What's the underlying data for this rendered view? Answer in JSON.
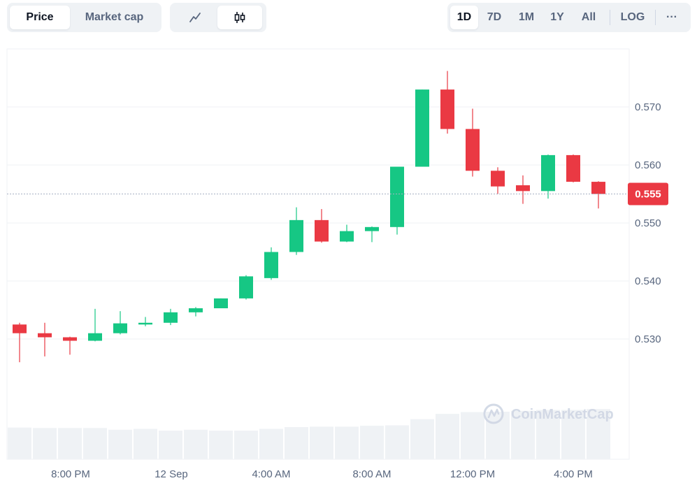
{
  "toolbar": {
    "metric_tabs": [
      {
        "label": "Price",
        "active": true
      },
      {
        "label": "Market cap",
        "active": false
      }
    ],
    "chart_types": [
      {
        "icon": "line-chart-icon",
        "active": false
      },
      {
        "icon": "candlestick-icon",
        "active": true
      }
    ],
    "ranges": [
      {
        "label": "1D",
        "active": true
      },
      {
        "label": "7D",
        "active": false
      },
      {
        "label": "1M",
        "active": false
      },
      {
        "label": "1Y",
        "active": false
      },
      {
        "label": "All",
        "active": false
      }
    ],
    "log_label": "LOG",
    "more_label": "···"
  },
  "watermark": "CoinMarketCap",
  "colors": {
    "up": "#16c784",
    "down": "#ea3943",
    "grid": "#eff2f5",
    "axis_text": "#58667e",
    "volume": "#eff2f5",
    "current_price_badge": "#ea3943"
  },
  "chart_data": {
    "type": "candlestick",
    "x_tick_labels": [
      "8:00 PM",
      "12 Sep",
      "4:00 AM",
      "8:00 AM",
      "12:00 PM",
      "4:00 PM"
    ],
    "y_ticks": [
      0.53,
      0.54,
      0.55,
      0.56,
      0.57
    ],
    "y_tick_labels": [
      "0.530",
      "0.540",
      "0.550",
      "0.560",
      "0.570"
    ],
    "ylim": [
      0.5225,
      0.5785
    ],
    "current_price": 0.555,
    "current_price_label": "0.555",
    "grid": true,
    "candles": [
      {
        "open": 0.5325,
        "close": 0.531,
        "high": 0.5328,
        "low": 0.526
      },
      {
        "open": 0.531,
        "close": 0.5303,
        "high": 0.5328,
        "low": 0.527
      },
      {
        "open": 0.5303,
        "close": 0.5297,
        "high": 0.5304,
        "low": 0.5273
      },
      {
        "open": 0.5297,
        "close": 0.531,
        "high": 0.5352,
        "low": 0.5296
      },
      {
        "open": 0.531,
        "close": 0.5327,
        "high": 0.5348,
        "low": 0.5308
      },
      {
        "open": 0.5325,
        "close": 0.5328,
        "high": 0.5338,
        "low": 0.5322
      },
      {
        "open": 0.5328,
        "close": 0.5346,
        "high": 0.5352,
        "low": 0.5324
      },
      {
        "open": 0.5346,
        "close": 0.5353,
        "high": 0.5355,
        "low": 0.5339
      },
      {
        "open": 0.5353,
        "close": 0.537,
        "high": 0.537,
        "low": 0.5353
      },
      {
        "open": 0.537,
        "close": 0.5408,
        "high": 0.541,
        "low": 0.5368
      },
      {
        "open": 0.5405,
        "close": 0.545,
        "high": 0.5458,
        "low": 0.5402
      },
      {
        "open": 0.545,
        "close": 0.5505,
        "high": 0.5527,
        "low": 0.5445
      },
      {
        "open": 0.5505,
        "close": 0.5468,
        "high": 0.5524,
        "low": 0.5466
      },
      {
        "open": 0.5468,
        "close": 0.5486,
        "high": 0.5497,
        "low": 0.5467
      },
      {
        "open": 0.5486,
        "close": 0.5493,
        "high": 0.5494,
        "low": 0.5467
      },
      {
        "open": 0.5493,
        "close": 0.5597,
        "high": 0.5597,
        "low": 0.548
      },
      {
        "open": 0.5597,
        "close": 0.573,
        "high": 0.573,
        "low": 0.5597
      },
      {
        "open": 0.573,
        "close": 0.5662,
        "high": 0.5762,
        "low": 0.5654
      },
      {
        "open": 0.5662,
        "close": 0.559,
        "high": 0.5697,
        "low": 0.558
      },
      {
        "open": 0.559,
        "close": 0.5563,
        "high": 0.5596,
        "low": 0.555
      },
      {
        "open": 0.5565,
        "close": 0.5555,
        "high": 0.5582,
        "low": 0.5533
      },
      {
        "open": 0.5555,
        "close": 0.5617,
        "high": 0.5618,
        "low": 0.5542
      },
      {
        "open": 0.5617,
        "close": 0.5571,
        "high": 0.5618,
        "low": 0.557
      },
      {
        "open": 0.5571,
        "close": 0.555,
        "high": 0.5572,
        "low": 0.5525
      }
    ],
    "volume_relative": [
      0.72,
      0.71,
      0.71,
      0.71,
      0.67,
      0.69,
      0.65,
      0.67,
      0.65,
      0.65,
      0.69,
      0.73,
      0.74,
      0.74,
      0.76,
      0.77,
      0.91,
      1.03,
      1.07,
      1.08,
      1.1,
      1.12,
      1.12,
      1.14
    ]
  }
}
